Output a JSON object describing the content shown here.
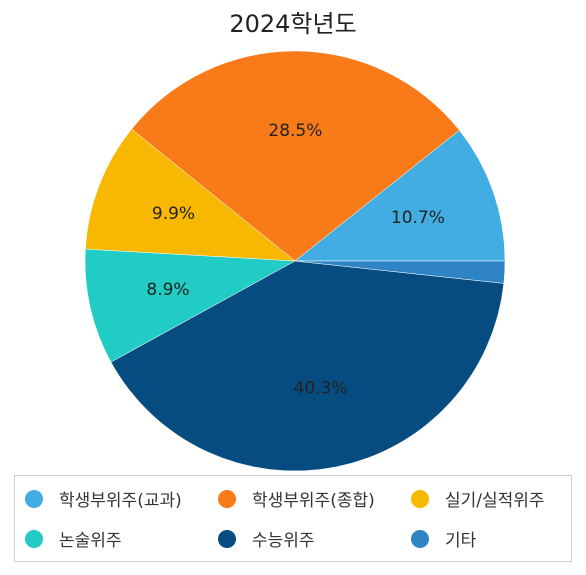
{
  "chart_data": {
    "type": "pie",
    "title": "2024학년도",
    "categories": [
      "학생부위주(교과)",
      "학생부위주(종합)",
      "실기/실적위주",
      "논술위주",
      "수능위주",
      "기타"
    ],
    "values": [
      10.7,
      28.5,
      9.9,
      8.9,
      40.3,
      1.7
    ],
    "value_labels": [
      "10.7%",
      "28.5%",
      "9.9%",
      "8.9%",
      "40.3%",
      ""
    ],
    "colors": [
      "#41ade2",
      "#f87a19",
      "#f8b700",
      "#20ccc3",
      "#074c80",
      "#2f84c5"
    ],
    "start_angle_deg": 0,
    "direction": "counterclockwise",
    "legend_position": "bottom"
  }
}
